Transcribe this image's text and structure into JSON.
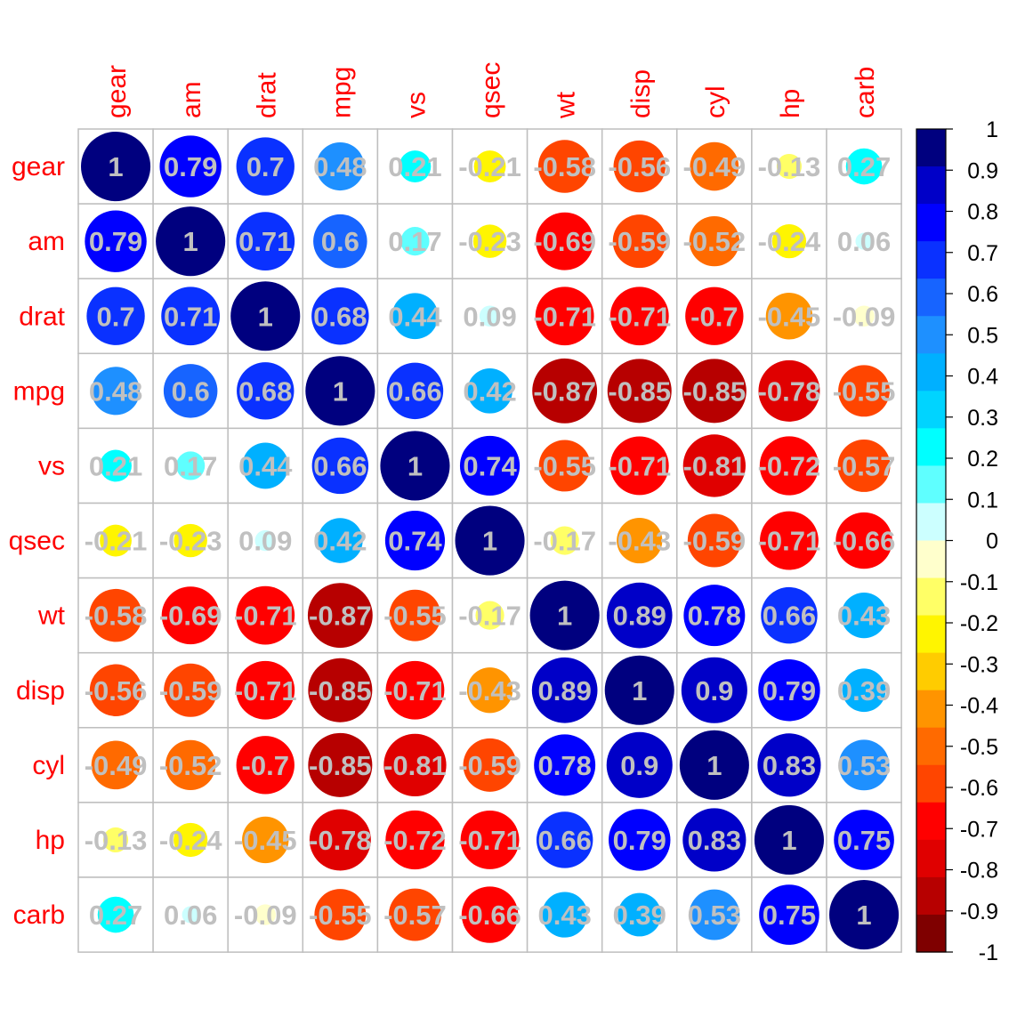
{
  "chart_data": {
    "type": "heatmap",
    "subtype": "correlation-circle-matrix",
    "variables": [
      "gear",
      "am",
      "drat",
      "mpg",
      "vs",
      "qsec",
      "wt",
      "disp",
      "cyl",
      "hp",
      "carb"
    ],
    "matrix": [
      [
        1,
        0.79,
        0.7,
        0.48,
        0.21,
        -0.21,
        -0.58,
        -0.56,
        -0.49,
        -0.13,
        0.27
      ],
      [
        0.79,
        1,
        0.71,
        0.6,
        0.17,
        -0.23,
        -0.69,
        -0.59,
        -0.52,
        -0.24,
        0.06
      ],
      [
        0.7,
        0.71,
        1,
        0.68,
        0.44,
        0.09,
        -0.71,
        -0.71,
        -0.7,
        -0.45,
        -0.09
      ],
      [
        0.48,
        0.6,
        0.68,
        1,
        0.66,
        0.42,
        -0.87,
        -0.85,
        -0.85,
        -0.78,
        -0.55
      ],
      [
        0.21,
        0.17,
        0.44,
        0.66,
        1,
        0.74,
        -0.55,
        -0.71,
        -0.81,
        -0.72,
        -0.57
      ],
      [
        -0.21,
        -0.23,
        0.09,
        0.42,
        0.74,
        1,
        -0.17,
        -0.43,
        -0.59,
        -0.71,
        -0.66
      ],
      [
        -0.58,
        -0.69,
        -0.71,
        -0.87,
        -0.55,
        -0.17,
        1,
        0.89,
        0.78,
        0.66,
        0.43
      ],
      [
        -0.56,
        -0.59,
        -0.71,
        -0.85,
        -0.71,
        -0.43,
        0.89,
        1,
        0.9,
        0.79,
        0.39
      ],
      [
        -0.49,
        -0.52,
        -0.7,
        -0.85,
        -0.81,
        -0.59,
        0.78,
        0.9,
        1,
        0.83,
        0.53
      ],
      [
        -0.13,
        -0.24,
        -0.45,
        -0.78,
        -0.72,
        -0.71,
        0.66,
        0.79,
        0.83,
        1,
        0.75
      ],
      [
        0.27,
        0.06,
        -0.09,
        -0.55,
        -0.57,
        -0.66,
        0.43,
        0.39,
        0.53,
        0.75,
        1
      ]
    ],
    "value_range": [
      -1,
      1
    ],
    "colorbar": {
      "ticks": [
        "1",
        "0.9",
        "0.8",
        "0.7",
        "0.6",
        "0.5",
        "0.4",
        "0.3",
        "0.2",
        "0.1",
        "0",
        "-0.1",
        "-0.2",
        "-0.3",
        "-0.4",
        "-0.5",
        "-0.6",
        "-0.7",
        "-0.8",
        "-0.9",
        "-1"
      ],
      "colors": [
        "#00007F",
        "#0000C8",
        "#0000FF",
        "#0A31FF",
        "#1764FF",
        "#1E90FF",
        "#00B0FF",
        "#00D4FF",
        "#00FFFF",
        "#5FFFFF",
        "#CCFFFF",
        "#FFFFCC",
        "#FFFF66",
        "#FFF500",
        "#FFCC00",
        "#FF9400",
        "#FF6A00",
        "#FF4500",
        "#FF0000",
        "#E00000",
        "#B70000",
        "#7F0000"
      ]
    },
    "label_color": "#FF0000",
    "value_text_color": "#C0C0C0",
    "grid_color": "#BEBEBE"
  }
}
